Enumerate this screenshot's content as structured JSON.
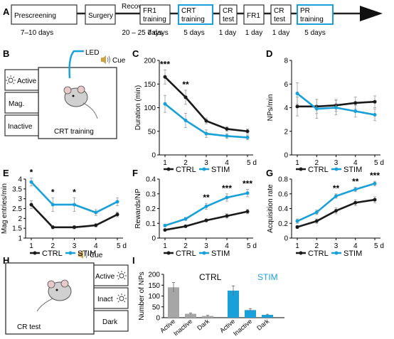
{
  "colors": {
    "ctrl": "#1a1a1a",
    "stim": "#1aa0d8",
    "ctrl_bar": "#a6a6a6",
    "stim_bar": "#1aa0d8",
    "box": "#333333"
  },
  "panels": {
    "A": "A",
    "B": "B",
    "C": "C",
    "D": "D",
    "E": "E",
    "F": "F",
    "G": "G",
    "H": "H",
    "I": "I"
  },
  "timeline": {
    "stages": [
      {
        "label": "Prescreening",
        "duration": "7–10 days"
      },
      {
        "label": "Surgery",
        "duration": ""
      },
      {
        "label": "Recovery",
        "duration": "20 – 25 days"
      },
      {
        "label": "FR1 training",
        "duration": "7 days"
      },
      {
        "label": "CRT training",
        "duration": "5 days"
      },
      {
        "label": "CR test",
        "duration": "1 day"
      },
      {
        "label": "FR1",
        "duration": "1 day"
      },
      {
        "label": "CR test",
        "duration": "1 day"
      },
      {
        "label": "PR training",
        "duration": "5 days"
      }
    ]
  },
  "panel_b": {
    "led": "LED",
    "cue": "Cue",
    "active": "Active",
    "mag": "Mag.",
    "inactive": "Inactive",
    "caption": "CRT training"
  },
  "panel_h": {
    "cue": "Cue",
    "active": "Active",
    "inact": "Inact",
    "dark": "Dark",
    "caption": "CR test"
  },
  "legend": {
    "ctrl": "CTRL",
    "stim": "STIM"
  },
  "chart_data": [
    {
      "panel": "C",
      "type": "line",
      "ylabel": "Duration (min)",
      "x": [
        1,
        2,
        3,
        4,
        5
      ],
      "xticks": [
        "1",
        "2",
        "3",
        "4",
        "5 d"
      ],
      "ylim": [
        0,
        200
      ],
      "yticks": [
        0,
        50,
        100,
        150,
        200
      ],
      "series": [
        {
          "name": "CTRL",
          "values": [
            165,
            122,
            72,
            55,
            50
          ],
          "err": [
            15,
            15,
            6,
            5,
            5
          ]
        },
        {
          "name": "STIM",
          "values": [
            108,
            73,
            45,
            40,
            37
          ],
          "err": [
            18,
            15,
            8,
            5,
            5
          ]
        }
      ],
      "sig": [
        {
          "x": 1,
          "text": "***"
        },
        {
          "x": 2,
          "text": "**"
        }
      ],
      "legend": "bottom"
    },
    {
      "panel": "D",
      "type": "line",
      "ylabel": "NPs/min",
      "x": [
        1,
        2,
        3,
        4,
        5
      ],
      "xticks": [
        "1",
        "2",
        "3",
        "4",
        "5 d"
      ],
      "ylim": [
        0,
        8
      ],
      "yticks": [
        0,
        2,
        4,
        6,
        8
      ],
      "series": [
        {
          "name": "CTRL",
          "values": [
            4.1,
            4.1,
            4.2,
            4.4,
            4.5
          ],
          "err": [
            0.8,
            0.6,
            0.5,
            0.5,
            0.5
          ]
        },
        {
          "name": "STIM",
          "values": [
            5.2,
            3.9,
            4.0,
            3.7,
            3.4
          ],
          "err": [
            0.9,
            0.8,
            0.6,
            0.5,
            0.5
          ]
        }
      ],
      "sig": [],
      "legend": "bottom"
    },
    {
      "panel": "E",
      "type": "line",
      "ylabel": "Mag entries/min",
      "x": [
        1,
        2,
        3,
        4,
        5
      ],
      "xticks": [
        "1",
        "2",
        "3",
        "4",
        "5 d"
      ],
      "ylim": [
        1,
        4
      ],
      "yticks": [
        1,
        1.5,
        2,
        2.5,
        3,
        3.5,
        4
      ],
      "series": [
        {
          "name": "CTRL",
          "values": [
            2.7,
            1.55,
            1.55,
            1.65,
            2.2
          ],
          "err": [
            0.2,
            0.08,
            0.08,
            0.08,
            0.12
          ]
        },
        {
          "name": "STIM",
          "values": [
            3.85,
            2.7,
            2.7,
            2.3,
            2.85
          ],
          "err": [
            0.2,
            0.35,
            0.35,
            0.15,
            0.2
          ]
        }
      ],
      "sig": [
        {
          "x": 1,
          "text": "*"
        },
        {
          "x": 2,
          "text": "*"
        },
        {
          "x": 3,
          "text": "*"
        }
      ],
      "legend": "bottom"
    },
    {
      "panel": "F",
      "type": "line",
      "ylabel": "Rewards/NP",
      "x": [
        1,
        2,
        3,
        4,
        5
      ],
      "xticks": [
        "1",
        "2",
        "3",
        "4",
        "5 d"
      ],
      "ylim": [
        0,
        0.4
      ],
      "yticks": [
        0,
        0.1,
        0.2,
        0.3,
        0.4
      ],
      "series": [
        {
          "name": "CTRL",
          "values": [
            0.055,
            0.08,
            0.12,
            0.15,
            0.18
          ],
          "err": [
            0.005,
            0.008,
            0.01,
            0.015,
            0.015
          ]
        },
        {
          "name": "STIM",
          "values": [
            0.085,
            0.13,
            0.215,
            0.275,
            0.305
          ],
          "err": [
            0.008,
            0.01,
            0.02,
            0.025,
            0.025
          ]
        }
      ],
      "sig": [
        {
          "x": 3,
          "text": "**"
        },
        {
          "x": 4,
          "text": "***"
        },
        {
          "x": 5,
          "text": "***"
        }
      ],
      "legend": "bottom"
    },
    {
      "panel": "G",
      "type": "line",
      "ylabel": "Acquisition rate",
      "x": [
        1,
        2,
        3,
        4,
        5
      ],
      "xticks": [
        "1",
        "2",
        "3",
        "4",
        "5 d"
      ],
      "ylim": [
        0,
        0.8
      ],
      "yticks": [
        0,
        0.2,
        0.4,
        0.6,
        0.8
      ],
      "series": [
        {
          "name": "CTRL",
          "values": [
            0.15,
            0.23,
            0.37,
            0.48,
            0.52
          ],
          "err": [
            0.02,
            0.03,
            0.04,
            0.04,
            0.04
          ]
        },
        {
          "name": "STIM",
          "values": [
            0.23,
            0.35,
            0.57,
            0.66,
            0.74
          ],
          "err": [
            0.03,
            0.03,
            0.03,
            0.03,
            0.03
          ]
        }
      ],
      "sig": [
        {
          "x": 3,
          "text": "**"
        },
        {
          "x": 4,
          "text": "**"
        },
        {
          "x": 5,
          "text": "***"
        }
      ],
      "legend": "bottom"
    },
    {
      "panel": "I",
      "type": "bar",
      "ylabel": "Number of NPs",
      "ylim": [
        0,
        200
      ],
      "yticks": [
        0,
        50,
        100,
        150,
        200
      ],
      "groups": [
        {
          "name": "CTRL",
          "categories": [
            "Active",
            "Inactive",
            "Dark"
          ],
          "values": [
            140,
            18,
            8
          ],
          "err": [
            22,
            4,
            3
          ]
        },
        {
          "name": "STIM",
          "categories": [
            "Active",
            "Inactive",
            "Dark"
          ],
          "values": [
            125,
            35,
            13
          ],
          "err": [
            22,
            7,
            3
          ]
        }
      ]
    }
  ]
}
